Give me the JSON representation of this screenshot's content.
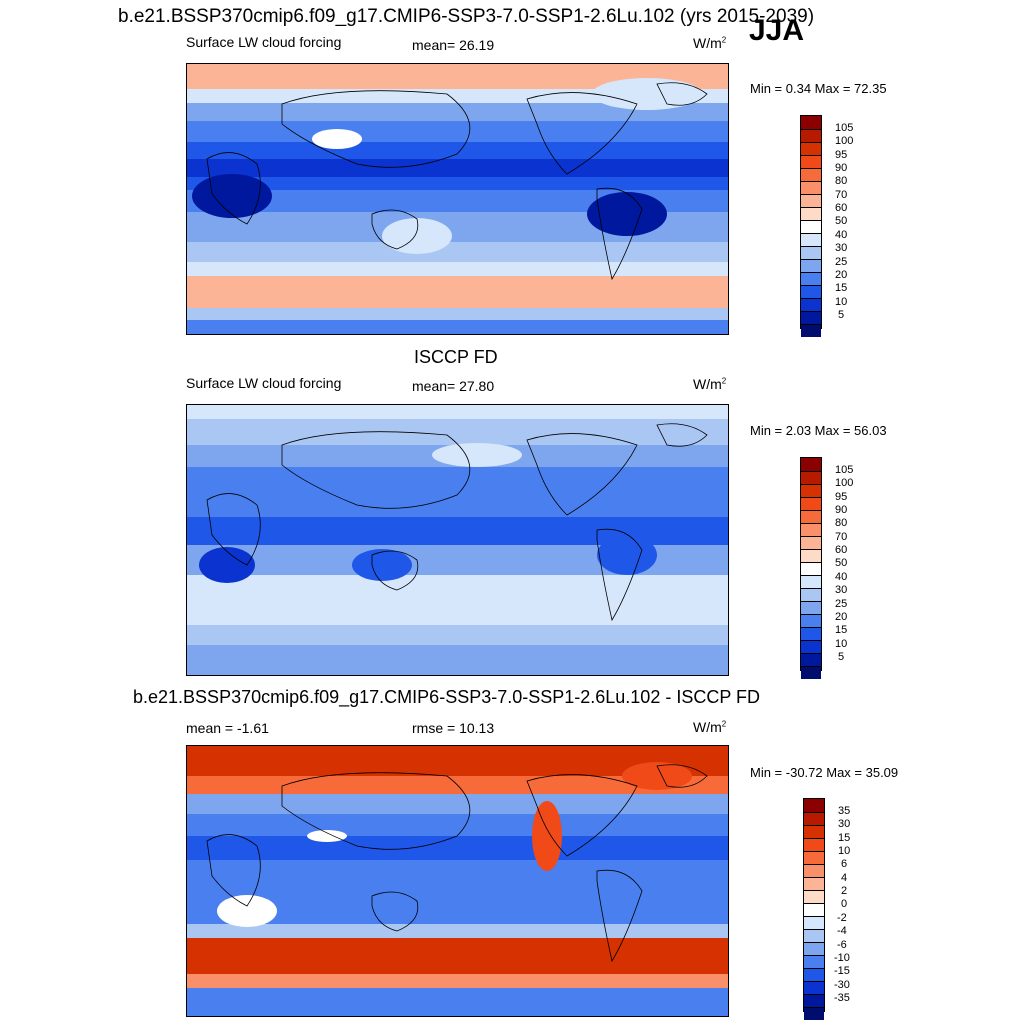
{
  "header": {
    "title": "b.e21.BSSP370cmip6.f09_g17.CMIP6-SSP3-7.0-SSP1-2.6Lu.102 (yrs 2015-2039)",
    "season": "JJA"
  },
  "panels": [
    {
      "variable": "Surface LW cloud forcing",
      "stat_text": "mean=  26.19",
      "units": "W/m",
      "units_sup": "2",
      "minmax": "Min =   0.34 Max =  72.35"
    },
    {
      "title": "ISCCP FD",
      "variable": "Surface LW cloud forcing",
      "stat_text": "mean=  27.80",
      "units": "W/m",
      "units_sup": "2",
      "minmax": "Min =   2.03 Max =  56.03"
    },
    {
      "title": "b.e21.BSSP370cmip6.f09_g17.CMIP6-SSP3-7.0-SSP1-2.6Lu.102 - ISCCP FD",
      "mean_text": "mean =  -1.61",
      "rmse_text": "rmse =  10.13",
      "units": "W/m",
      "units_sup": "2",
      "minmax": "Min = -30.72 Max =  35.09"
    }
  ],
  "chart_data": [
    {
      "type": "heatmap",
      "title": "b.e21.BSSP370cmip6.f09_g17.CMIP6-SSP3-7.0-SSP1-2.6Lu.102 (yrs 2015-2039)",
      "variable": "Surface LW cloud forcing",
      "season": "JJA",
      "units": "W/m2",
      "mean": 26.19,
      "min": 0.34,
      "max": 72.35,
      "colorbar_levels": [
        "105",
        "100",
        "95",
        "90",
        "80",
        "70",
        "60",
        "50",
        "40",
        "30",
        "25",
        "20",
        "15",
        "10",
        "5"
      ],
      "colorbar_colors": [
        "#8b0000",
        "#b81a00",
        "#d63100",
        "#f04a18",
        "#f76b3b",
        "#f99069",
        "#fbb596",
        "#fddbc7",
        "#ffffff",
        "#d6e6fb",
        "#aac7f3",
        "#7ea6ee",
        "#4a7ff0",
        "#1f57e8",
        "#0a33cf",
        "#00189e",
        "#000d6e"
      ]
    },
    {
      "type": "heatmap",
      "title": "ISCCP FD",
      "variable": "Surface LW cloud forcing",
      "season": "JJA",
      "units": "W/m2",
      "mean": 27.8,
      "min": 2.03,
      "max": 56.03,
      "colorbar_levels": [
        "105",
        "100",
        "95",
        "90",
        "80",
        "70",
        "60",
        "50",
        "40",
        "30",
        "25",
        "20",
        "15",
        "10",
        "5"
      ]
    },
    {
      "type": "heatmap",
      "title": "b.e21.BSSP370cmip6.f09_g17.CMIP6-SSP3-7.0-SSP1-2.6Lu.102 - ISCCP FD",
      "season": "JJA",
      "units": "W/m2",
      "mean": -1.61,
      "rmse": 10.13,
      "min": -30.72,
      "max": 35.09,
      "colorbar_levels": [
        "35",
        "30",
        "15",
        "10",
        "6",
        "4",
        "2",
        "0",
        "-2",
        "-4",
        "-6",
        "-10",
        "-15",
        "-30",
        "-35"
      ],
      "colorbar_colors": [
        "#8b0000",
        "#b81a00",
        "#d63100",
        "#f04a18",
        "#f76b3b",
        "#f99069",
        "#fbb596",
        "#fddbc7",
        "#ffffff",
        "#d6e6fb",
        "#aac7f3",
        "#7ea6ee",
        "#4a7ff0",
        "#1f57e8",
        "#0a33cf",
        "#00189e",
        "#000d6e"
      ]
    }
  ]
}
